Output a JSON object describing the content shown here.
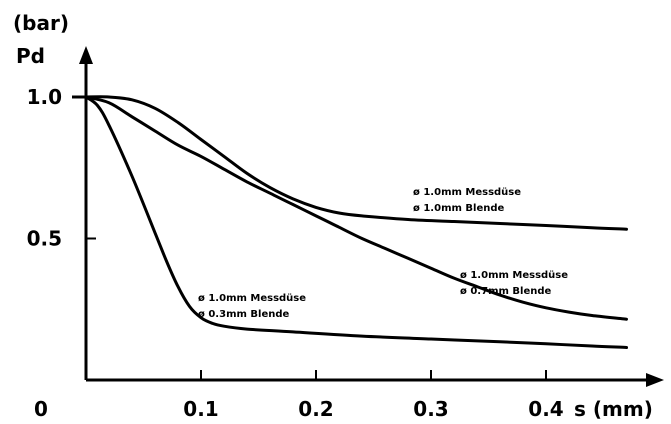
{
  "chart_data": {
    "type": "line",
    "ylabel_unit": "(bar)",
    "ylabel": "Pd",
    "xlabel": "s (mm)",
    "xlim": [
      0,
      0.48
    ],
    "ylim": [
      0,
      1.15
    ],
    "x_ticks": [
      {
        "value": 0.1,
        "label": "0.1"
      },
      {
        "value": 0.2,
        "label": "0.2"
      },
      {
        "value": 0.3,
        "label": "0.3"
      },
      {
        "value": 0.4,
        "label": "0.4"
      }
    ],
    "y_ticks": [
      {
        "value": 1.0,
        "label": "1.0"
      },
      {
        "value": 0.5,
        "label": "0.5"
      }
    ],
    "origin_label": "0",
    "series": [
      {
        "annotation": [
          "ø 1.0mm Messdüse",
          "ø 1.0mm Blende"
        ],
        "x": [
          0,
          0.02,
          0.04,
          0.06,
          0.08,
          0.1,
          0.12,
          0.14,
          0.16,
          0.18,
          0.2,
          0.22,
          0.24,
          0.28,
          0.32,
          0.36,
          0.4,
          0.44,
          0.47
        ],
        "y": [
          1.0,
          1.0,
          0.99,
          0.96,
          0.91,
          0.85,
          0.79,
          0.73,
          0.68,
          0.64,
          0.61,
          0.59,
          0.58,
          0.567,
          0.56,
          0.553,
          0.546,
          0.538,
          0.533
        ]
      },
      {
        "annotation": [
          "ø 1.0mm Messdüse",
          "ø 0.7mm Blende"
        ],
        "x": [
          0,
          0.02,
          0.04,
          0.06,
          0.08,
          0.1,
          0.12,
          0.14,
          0.16,
          0.18,
          0.2,
          0.22,
          0.24,
          0.26,
          0.28,
          0.3,
          0.32,
          0.34,
          0.36,
          0.38,
          0.4,
          0.42,
          0.44,
          0.47
        ],
        "y": [
          1.0,
          0.98,
          0.93,
          0.88,
          0.83,
          0.79,
          0.745,
          0.7,
          0.66,
          0.62,
          0.58,
          0.54,
          0.5,
          0.465,
          0.43,
          0.395,
          0.36,
          0.33,
          0.3,
          0.275,
          0.255,
          0.24,
          0.228,
          0.215
        ]
      },
      {
        "annotation": [
          "ø 1.0mm Messdüse",
          "ø 0.3mm Blende"
        ],
        "x": [
          0,
          0.01,
          0.02,
          0.04,
          0.06,
          0.07,
          0.08,
          0.09,
          0.1,
          0.11,
          0.12,
          0.14,
          0.18,
          0.24,
          0.3,
          0.36,
          0.4,
          0.44,
          0.47
        ],
        "y": [
          1.0,
          0.97,
          0.9,
          0.72,
          0.52,
          0.42,
          0.33,
          0.26,
          0.22,
          0.2,
          0.19,
          0.18,
          0.17,
          0.155,
          0.145,
          0.135,
          0.128,
          0.12,
          0.115
        ]
      }
    ]
  }
}
